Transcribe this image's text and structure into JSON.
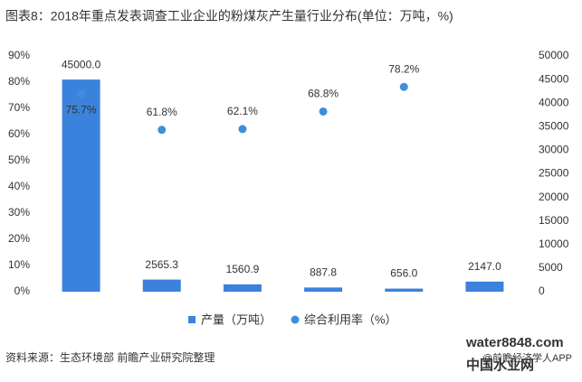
{
  "chart_data": {
    "type": "bar",
    "title": "图表8：2018年重点发表调查工业企业的粉煤灰产生量行业分布(单位：万吨，%)",
    "series": [
      {
        "name": "产量（万吨）",
        "type": "bar",
        "axis": "y2",
        "color": "#3b82dc",
        "values": [
          45000.0,
          2565.3,
          1560.9,
          887.8,
          656.0,
          2147.0
        ],
        "value_labels": [
          "45000.0",
          "2565.3",
          "1560.9",
          "887.8",
          "656.0",
          "2147.0"
        ]
      },
      {
        "name": "综合利用率（%）",
        "type": "scatter",
        "color": "#3d8fdc",
        "values": [
          75.7,
          61.8,
          62.1,
          68.8,
          78.2,
          null
        ],
        "value_labels": [
          "75.7%",
          "61.8%",
          "62.1%",
          "68.8%",
          "78.2%",
          null
        ]
      }
    ],
    "ylim": [
      0,
      90
    ],
    "yticks": [
      {
        "value": 0,
        "label": "0%"
      },
      {
        "value": 10,
        "label": "10%"
      },
      {
        "value": 20,
        "label": "20%"
      },
      {
        "value": 30,
        "label": "30%"
      },
      {
        "value": 40,
        "label": "40%"
      },
      {
        "value": 50,
        "label": "50%"
      },
      {
        "value": 60,
        "label": "60%"
      },
      {
        "value": 70,
        "label": "70%"
      },
      {
        "value": 80,
        "label": "80%"
      },
      {
        "value": 90,
        "label": "90%"
      }
    ],
    "y2lim": [
      0,
      50000
    ],
    "y2ticks": [
      0,
      5000,
      10000,
      15000,
      20000,
      25000,
      30000,
      35000,
      40000,
      45000,
      50000
    ],
    "source": "资料来源：生态环境部 前瞻产业研究院整理"
  },
  "footer": {
    "app": "@前瞻经济学人APP",
    "logo": "water8848.com",
    "logo_sub": "中国水业网"
  }
}
